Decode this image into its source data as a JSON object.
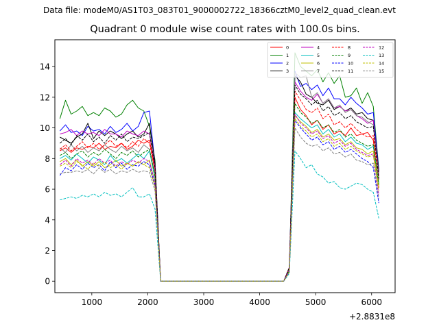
{
  "header": {
    "suptitle": "Data file: modeM0/AS1T03_083T01_9000002722_18366cztM0_level2_quad_clean.evt",
    "title": "Quadrant 0 module wise count rates with 100.0s bins."
  },
  "chart_data": {
    "type": "line",
    "title": "Quadrant 0 module wise count rates with 100.0s bins.",
    "xlabel": "",
    "ylabel": "",
    "x_offset_label": "+2.8831e8",
    "xlim": [
      340,
      6420
    ],
    "ylim": [
      -0.75,
      15.75
    ],
    "x_ticks": [
      1000,
      2000,
      3000,
      4000,
      5000,
      6000
    ],
    "x_tick_labels": [
      "1000",
      "2000",
      "3000",
      "4000",
      "5000",
      "6000"
    ],
    "y_ticks": [
      0,
      2,
      4,
      6,
      8,
      10,
      12,
      14
    ],
    "y_tick_labels": [
      "0",
      "2",
      "4",
      "6",
      "8",
      "10",
      "12",
      "14"
    ],
    "grid": false,
    "legend_placement": "top-right",
    "legend_columns": 4,
    "x": [
      430,
      530,
      630,
      730,
      830,
      930,
      1030,
      1130,
      1230,
      1330,
      1430,
      1530,
      1630,
      1730,
      1830,
      1930,
      2030,
      2130,
      2230,
      2330,
      2430,
      2530,
      2630,
      2730,
      2830,
      2930,
      3030,
      3130,
      3230,
      3330,
      3430,
      3530,
      3630,
      3730,
      3830,
      3930,
      4030,
      4130,
      4230,
      4330,
      4430,
      4530,
      4630,
      4730,
      4830,
      4930,
      5030,
      5130,
      5230,
      5330,
      5430,
      5530,
      5630,
      5730,
      5830,
      5930,
      6030,
      6130
    ],
    "series": [
      {
        "name": "0",
        "color": "#ff0000",
        "dash": "solid",
        "values": [
          8.5,
          8.7,
          8.4,
          8.7,
          8.6,
          8.8,
          8.7,
          9.0,
          8.6,
          8.8,
          8.7,
          9.0,
          8.6,
          8.8,
          9.2,
          9.0,
          9.2,
          7.3,
          0,
          0,
          0,
          0,
          0,
          0,
          0,
          0,
          0,
          0,
          0,
          0,
          0,
          0,
          0,
          0,
          0,
          0,
          0,
          0,
          0,
          0,
          0,
          0.8,
          12.0,
          11.2,
          10.8,
          10.2,
          10.5,
          9.9,
          10.2,
          9.6,
          9.8,
          9.5,
          10.0,
          9.5,
          9.6,
          9.7,
          9.2,
          6.1
        ]
      },
      {
        "name": "1",
        "color": "#008000",
        "dash": "solid",
        "values": [
          10.6,
          11.8,
          10.9,
          11.1,
          11.4,
          10.8,
          11.0,
          10.8,
          11.3,
          11.1,
          10.7,
          10.9,
          11.5,
          11.8,
          11.3,
          11.1,
          10.1,
          7.9,
          0,
          0,
          0,
          0,
          0,
          0,
          0,
          0,
          0,
          0,
          0,
          0,
          0,
          0,
          0,
          0,
          0,
          0,
          0,
          0,
          0,
          0,
          0,
          0.7,
          14.9,
          14.0,
          13.7,
          13.4,
          13.8,
          13.0,
          13.6,
          12.9,
          13.4,
          12.0,
          12.1,
          12.6,
          11.6,
          12.3,
          11.4,
          7.3
        ]
      },
      {
        "name": "2",
        "color": "#0000ff",
        "dash": "solid",
        "values": [
          9.8,
          10.2,
          9.7,
          9.8,
          9.5,
          10.1,
          9.8,
          9.9,
          9.6,
          10.1,
          9.7,
          9.9,
          10.3,
          9.8,
          10.1,
          11.0,
          11.1,
          7.6,
          0,
          0,
          0,
          0,
          0,
          0,
          0,
          0,
          0,
          0,
          0,
          0,
          0,
          0,
          0,
          0,
          0,
          0,
          0,
          0,
          0,
          0,
          0,
          0.9,
          13.7,
          12.7,
          12.9,
          12.5,
          12.8,
          12.1,
          12.6,
          11.9,
          11.9,
          11.5,
          12.0,
          11.6,
          11.3,
          10.9,
          11.0,
          7.2
        ]
      },
      {
        "name": "3",
        "color": "#000000",
        "dash": "solid",
        "values": [
          9.4,
          9.2,
          9.0,
          9.4,
          9.6,
          10.3,
          9.3,
          9.8,
          9.5,
          9.8,
          9.6,
          9.3,
          9.6,
          9.8,
          9.4,
          9.6,
          10.3,
          7.7,
          0,
          0,
          0,
          0,
          0,
          0,
          0,
          0,
          0,
          0,
          0,
          0,
          0,
          0,
          0,
          0,
          0,
          0,
          0,
          0,
          0,
          0,
          0,
          0.8,
          13.4,
          13.0,
          12.2,
          12.0,
          11.6,
          11.5,
          11.8,
          11.2,
          11.4,
          11.1,
          11.3,
          10.9,
          11.0,
          10.6,
          10.5,
          7.1
        ]
      },
      {
        "name": "4",
        "color": "#bf00bf",
        "dash": "solid",
        "values": [
          9.6,
          9.7,
          9.9,
          9.5,
          9.8,
          9.6,
          9.7,
          9.5,
          9.9,
          9.6,
          9.6,
          9.4,
          9.8,
          9.6,
          9.5,
          9.8,
          9.6,
          7.5,
          0,
          0,
          0,
          0,
          0,
          0,
          0,
          0,
          0,
          0,
          0,
          0,
          0,
          0,
          0,
          0,
          0,
          0,
          0,
          0,
          0,
          0,
          0,
          0.8,
          13.0,
          12.4,
          12.0,
          11.8,
          12.2,
          11.6,
          11.9,
          11.3,
          11.4,
          11.1,
          11.2,
          10.8,
          10.6,
          10.3,
          10.5,
          6.9
        ]
      },
      {
        "name": "5",
        "color": "#00bfbf",
        "dash": "solid",
        "values": [
          8.0,
          8.2,
          7.9,
          8.3,
          8.0,
          7.7,
          8.1,
          7.9,
          7.6,
          8.2,
          7.8,
          8.0,
          7.7,
          8.0,
          8.3,
          8.0,
          8.5,
          6.7,
          0,
          0,
          0,
          0,
          0,
          0,
          0,
          0,
          0,
          0,
          0,
          0,
          0,
          0,
          0,
          0,
          0,
          0,
          0,
          0,
          0,
          0,
          0,
          0.7,
          11.0,
          10.6,
          10.3,
          10.0,
          10.2,
          9.6,
          9.9,
          9.4,
          9.6,
          9.1,
          9.4,
          9.0,
          8.9,
          8.6,
          8.8,
          6.4
        ]
      },
      {
        "name": "6",
        "color": "#bfbf00",
        "dash": "solid",
        "values": [
          7.8,
          8.0,
          7.6,
          7.9,
          7.5,
          7.8,
          7.5,
          7.8,
          7.4,
          7.6,
          7.9,
          7.5,
          7.7,
          7.5,
          7.8,
          7.6,
          7.9,
          6.4,
          0,
          0,
          0,
          0,
          0,
          0,
          0,
          0,
          0,
          0,
          0,
          0,
          0,
          0,
          0,
          0,
          0,
          0,
          0,
          0,
          0,
          0,
          0,
          0.6,
          10.8,
          10.4,
          10.1,
          9.7,
          9.9,
          9.4,
          9.6,
          9.2,
          9.3,
          8.9,
          9.1,
          8.7,
          8.6,
          8.3,
          8.5,
          6.2
        ]
      },
      {
        "name": "7",
        "color": "#808080",
        "dash": "solid",
        "values": [
          8.7,
          8.4,
          8.9,
          8.5,
          8.8,
          8.4,
          8.7,
          8.5,
          8.9,
          8.6,
          8.4,
          8.8,
          8.5,
          8.7,
          8.4,
          8.9,
          8.6,
          7.0,
          0,
          0,
          0,
          0,
          0,
          0,
          0,
          0,
          0,
          0,
          0,
          0,
          0,
          0,
          0,
          0,
          0,
          0,
          0,
          0,
          0,
          0,
          0,
          0.8,
          13.6,
          13.3,
          13.4,
          12.0,
          12.3,
          11.6,
          11.9,
          11.3,
          11.5,
          11.0,
          11.2,
          10.8,
          10.7,
          10.4,
          10.2,
          6.8
        ]
      },
      {
        "name": "8",
        "color": "#ff0000",
        "dash": "dashed",
        "values": [
          8.6,
          8.9,
          8.5,
          8.8,
          9.1,
          8.7,
          9.0,
          8.6,
          8.9,
          9.2,
          8.8,
          9.0,
          8.7,
          9.1,
          8.8,
          9.3,
          9.0,
          7.2,
          0,
          0,
          0,
          0,
          0,
          0,
          0,
          0,
          0,
          0,
          0,
          0,
          0,
          0,
          0,
          0,
          0,
          0,
          0,
          0,
          0,
          0,
          0,
          0.9,
          12.4,
          11.8,
          11.2,
          11.0,
          11.3,
          10.6,
          10.9,
          10.2,
          10.4,
          10.0,
          10.3,
          9.9,
          9.6,
          9.4,
          9.5,
          6.6
        ]
      },
      {
        "name": "9",
        "color": "#008000",
        "dash": "dashed",
        "values": [
          8.2,
          8.4,
          8.0,
          8.3,
          8.5,
          8.1,
          8.4,
          8.2,
          8.6,
          8.3,
          8.0,
          8.4,
          8.2,
          8.5,
          8.1,
          8.4,
          8.6,
          6.8,
          0,
          0,
          0,
          0,
          0,
          0,
          0,
          0,
          0,
          0,
          0,
          0,
          0,
          0,
          0,
          0,
          0,
          0,
          0,
          0,
          0,
          0,
          0,
          0.7,
          11.6,
          11.0,
          10.7,
          10.3,
          10.5,
          10.0,
          10.2,
          9.7,
          9.9,
          9.4,
          9.6,
          9.2,
          9.0,
          8.8,
          8.9,
          6.3
        ]
      },
      {
        "name": "10",
        "color": "#0000ff",
        "dash": "dashed",
        "values": [
          6.9,
          7.4,
          7.2,
          7.6,
          7.3,
          7.7,
          7.4,
          7.6,
          7.2,
          7.8,
          7.4,
          7.7,
          7.3,
          7.6,
          7.5,
          7.8,
          7.6,
          6.2,
          0,
          0,
          0,
          0,
          0,
          0,
          0,
          0,
          0,
          0,
          0,
          0,
          0,
          0,
          0,
          0,
          0,
          0,
          0,
          0,
          0,
          0,
          0,
          0.6,
          10.5,
          10.0,
          9.6,
          9.2,
          9.4,
          8.9,
          9.1,
          8.6,
          8.8,
          8.4,
          8.6,
          8.3,
          8.0,
          7.8,
          7.4,
          5.1
        ]
      },
      {
        "name": "11",
        "color": "#000000",
        "dash": "dashed",
        "values": [
          9.0,
          9.3,
          8.9,
          9.5,
          9.2,
          9.6,
          9.1,
          9.4,
          9.0,
          9.5,
          9.2,
          9.6,
          9.1,
          9.4,
          9.3,
          9.5,
          9.7,
          7.4,
          0,
          0,
          0,
          0,
          0,
          0,
          0,
          0,
          0,
          0,
          0,
          0,
          0,
          0,
          0,
          0,
          0,
          0,
          0,
          0,
          0,
          0,
          0,
          0.9,
          12.8,
          12.2,
          11.9,
          11.5,
          11.8,
          11.1,
          11.4,
          10.8,
          11.0,
          10.6,
          10.8,
          10.4,
          10.2,
          10.0,
          10.1,
          6.7
        ]
      },
      {
        "name": "12",
        "color": "#bf00bf",
        "dash": "dashed",
        "values": [
          7.6,
          7.9,
          7.5,
          8.0,
          7.7,
          7.9,
          7.6,
          8.0,
          7.7,
          7.9,
          7.5,
          7.8,
          7.6,
          7.9,
          7.7,
          8.0,
          7.8,
          6.4,
          0,
          0,
          0,
          0,
          0,
          0,
          0,
          0,
          0,
          0,
          0,
          0,
          0,
          0,
          0,
          0,
          0,
          0,
          0,
          0,
          0,
          0,
          0,
          0.7,
          10.9,
          10.3,
          10.0,
          9.6,
          9.8,
          9.3,
          9.5,
          9.0,
          9.2,
          8.8,
          9.0,
          8.6,
          8.4,
          8.2,
          8.3,
          5.6
        ]
      },
      {
        "name": "13",
        "color": "#00bfbf",
        "dash": "dashed",
        "values": [
          5.3,
          5.4,
          5.5,
          5.4,
          5.6,
          5.5,
          5.7,
          5.5,
          5.8,
          5.6,
          5.7,
          5.5,
          5.8,
          6.1,
          5.5,
          5.5,
          5.7,
          4.7,
          0,
          0,
          0,
          0,
          0,
          0,
          0,
          0,
          0,
          0,
          0,
          0,
          0,
          0,
          0,
          0,
          0,
          0,
          0,
          0,
          0,
          0,
          0,
          0.5,
          8.5,
          8.0,
          7.4,
          7.6,
          7.0,
          6.8,
          6.4,
          6.5,
          6.1,
          6.0,
          6.2,
          6.4,
          6.3,
          6.0,
          5.8,
          4.1
        ]
      },
      {
        "name": "14",
        "color": "#bfbf00",
        "dash": "dashed",
        "values": [
          7.5,
          7.7,
          7.4,
          7.8,
          7.6,
          7.3,
          7.7,
          7.5,
          7.8,
          7.4,
          7.6,
          7.3,
          7.7,
          7.5,
          7.8,
          7.6,
          7.4,
          6.1,
          0,
          0,
          0,
          0,
          0,
          0,
          0,
          0,
          0,
          0,
          0,
          0,
          0,
          0,
          0,
          0,
          0,
          0,
          0,
          0,
          0,
          0,
          0,
          0.6,
          10.6,
          10.1,
          9.8,
          9.4,
          9.6,
          9.1,
          9.3,
          8.8,
          9.0,
          8.6,
          8.8,
          8.5,
          8.3,
          8.1,
          8.2,
          5.9
        ]
      },
      {
        "name": "15",
        "color": "#808080",
        "dash": "dashed",
        "values": [
          7.0,
          7.1,
          7.1,
          7.2,
          7.1,
          7.3,
          7.0,
          7.4,
          7.1,
          7.3,
          7.0,
          7.2,
          7.1,
          7.3,
          7.1,
          7.2,
          7.1,
          5.9,
          0,
          0,
          0,
          0,
          0,
          0,
          0,
          0,
          0,
          0,
          0,
          0,
          0,
          0,
          0,
          0,
          0,
          0,
          0,
          0,
          0,
          0,
          0,
          0.6,
          10.0,
          9.4,
          9.0,
          8.8,
          8.9,
          8.5,
          8.7,
          8.3,
          8.4,
          8.1,
          8.3,
          7.9,
          7.8,
          7.6,
          7.7,
          5.4
        ]
      }
    ]
  }
}
